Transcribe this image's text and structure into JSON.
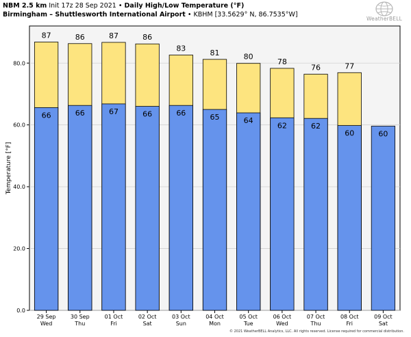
{
  "header": {
    "model": "NBM 2.5 km",
    "init": "Init 17z 28 Sep 2021",
    "separator": "•",
    "product": "Daily High/Low Temperature (°F)",
    "station_name": "Birmingham – Shuttlesworth International Airport",
    "station_info": "KBHM [33.5629° N, 86.7535°W]"
  },
  "logo": {
    "text": "WeatherBELL",
    "icon": "globe-icon"
  },
  "credit": "© 2021 WeatherBELL Analytics, LLC. All rights reserved. License required for commercial distribution.",
  "chart_data": {
    "type": "bar",
    "ylabel": "Temperature [°F]",
    "ylim": [
      0,
      92
    ],
    "yticks": [
      0,
      20,
      40,
      60,
      80
    ],
    "ytick_labels": [
      "0.0",
      "20.0",
      "40.0",
      "60.0",
      "80.0"
    ],
    "grid": "y-major",
    "categories": [
      "29 Sep",
      "30 Sep",
      "01 Oct",
      "02 Oct",
      "03 Oct",
      "04 Oct",
      "05 Oct",
      "06 Oct",
      "07 Oct",
      "08 Oct",
      "09 Oct"
    ],
    "weekdays": [
      "Wed",
      "Thu",
      "Fri",
      "Sat",
      "Sun",
      "Mon",
      "Tue",
      "Wed",
      "Thu",
      "Fri",
      "Sat"
    ],
    "series": [
      {
        "role": "high",
        "color": "#fde47f",
        "values": [
          86.8,
          86.3,
          86.7,
          86.2,
          82.6,
          81.2,
          79.9,
          78.3,
          76.4,
          76.9,
          null
        ],
        "labels": [
          "87",
          "86",
          "87",
          "86",
          "83",
          "81",
          "80",
          "78",
          "76",
          "77",
          ""
        ]
      },
      {
        "role": "low",
        "color": "#6593ec",
        "values": [
          65.6,
          66.3,
          66.8,
          66.0,
          66.3,
          65.0,
          63.9,
          62.3,
          62.1,
          59.8,
          59.6
        ],
        "labels": [
          "66",
          "66",
          "67",
          "66",
          "66",
          "65",
          "64",
          "62",
          "62",
          "60",
          "60"
        ]
      }
    ]
  }
}
